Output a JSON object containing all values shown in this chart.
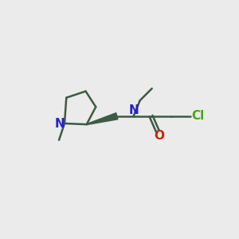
{
  "background_color": "#ebebeb",
  "bond_color": "#3d5a47",
  "N_color": "#2222cc",
  "O_color": "#cc2200",
  "Cl_color": "#44aa00",
  "line_width": 1.8,
  "font_size_atom": 11,
  "fig_size": [
    3.0,
    3.0
  ],
  "dpi": 100,
  "xlim": [
    0,
    10
  ],
  "ylim": [
    0,
    10
  ]
}
